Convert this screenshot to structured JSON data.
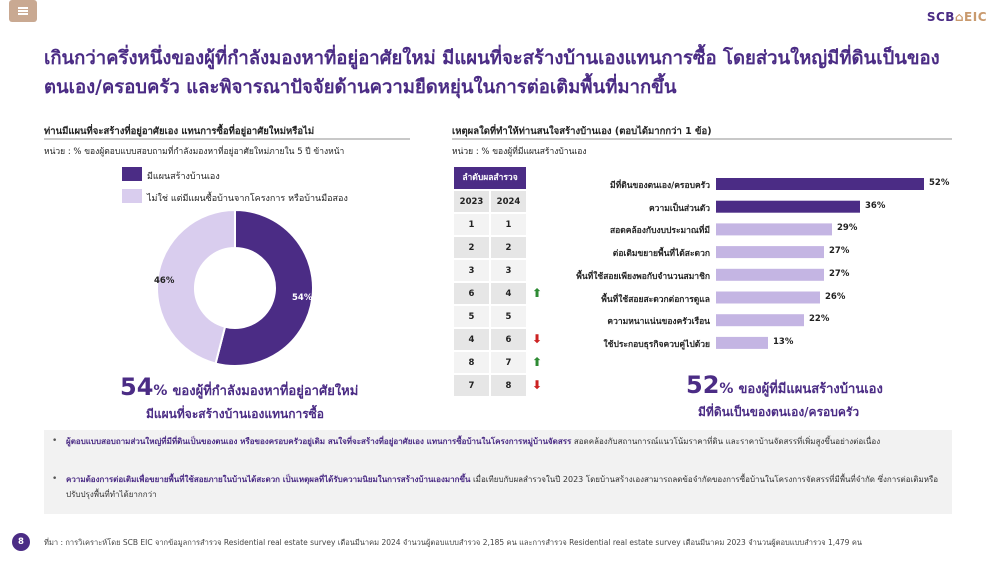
{
  "header": {
    "logo_scb": "SCB",
    "logo_eic": "EIC",
    "title": "เกินกว่าครึ่งหนึ่งของผู้ที่กำลังมองหาที่อยู่อาศัยใหม่ มีแผนที่จะสร้างบ้านเองแทนการซื้อ โดยส่วนใหญ่มีที่ดินเป็นของตนเอง/ครอบครัว และพิจารณาปัจจัยด้านความยืดหยุ่นในการต่อเติมพื้นที่มากขึ้น"
  },
  "left_panel": {
    "heading": "ท่านมีแผนที่จะสร้างที่อยู่อาศัยเอง แทนการซื้อที่อยู่อาศัยใหม่หรือไม่",
    "unit": "หน่วย : % ของผู้ตอบแบบสอบถามที่กำลังมองหาที่อยู่อาศัยใหม่ภายใน 5 ปี ข้างหน้า",
    "legend": [
      {
        "label": "มีแผนสร้างบ้านเอง",
        "color": "#4b2c85"
      },
      {
        "label": "ไม่ใช่ แต่มีแผนซื้อบ้านจากโครงการ หรือบ้านมือสอง",
        "color": "#d9cdee"
      }
    ],
    "big_pct": "54",
    "big_pct_sign": "%",
    "big_text": "ของผู้ที่กำลังมองหาที่อยู่อาศัยใหม่",
    "big_line2": "มีแผนที่จะสร้างบ้านเองแทนการซื้อ"
  },
  "donut": {
    "segments": [
      {
        "name": "มีแผนสร้างบ้านเอง",
        "value": 54,
        "label": "54%",
        "color": "#4b2c85"
      },
      {
        "name": "ไม่ใช่ แต่มีแผนซื้อบ้านจากโครงการ หรือบ้านมือสอง",
        "value": 46,
        "label": "46%",
        "color": "#d9cdee"
      }
    ]
  },
  "right_panel": {
    "heading": "เหตุผลใดที่ทำให้ท่านสนใจสร้างบ้านเอง (ตอบได้มากกว่า 1 ข้อ)",
    "unit": "หน่วย : % ของผู้ที่มีแผนสร้างบ้านเอง",
    "rank_title": "ลำดับผลสำรวจ",
    "rank_years": [
      "2023",
      "2024"
    ],
    "ranks": [
      {
        "y2023": "1",
        "y2024": "1",
        "trend": ""
      },
      {
        "y2023": "2",
        "y2024": "2",
        "trend": ""
      },
      {
        "y2023": "3",
        "y2024": "3",
        "trend": ""
      },
      {
        "y2023": "6",
        "y2024": "4",
        "trend": "up"
      },
      {
        "y2023": "5",
        "y2024": "5",
        "trend": ""
      },
      {
        "y2023": "4",
        "y2024": "6",
        "trend": "down"
      },
      {
        "y2023": "8",
        "y2024": "7",
        "trend": "up"
      },
      {
        "y2023": "7",
        "y2024": "8",
        "trend": "down"
      }
    ],
    "big_pct": "52",
    "big_pct_sign": "%",
    "big_text": "ของผู้ที่มีแผนสร้างบ้านเอง",
    "big_line2": "มีที่ดินเป็นของตนเอง/ครอบครัว"
  },
  "chart_data": {
    "type": "bar",
    "orientation": "horizontal",
    "categories": [
      "มีที่ดินของตนเอง/ครอบครัว",
      "ความเป็นส่วนตัว",
      "สอดคล้องกับงบประมาณที่มี",
      "ต่อเติมขยายพื้นที่ได้สะดวก",
      "พื้นที่ใช้สอยเพียงพอกับจำนวนสมาชิก",
      "พื้นที่ใช้สอยสะดวกต่อการดูแล",
      "ความหนาแน่นของครัวเรือน",
      "ใช้ประกอบธุรกิจควบคู่ไปด้วย"
    ],
    "values": [
      52,
      36,
      29,
      27,
      27,
      26,
      22,
      13
    ],
    "value_labels": [
      "52%",
      "36%",
      "29%",
      "27%",
      "27%",
      "26%",
      "22%",
      "13%"
    ],
    "colors": [
      "#4b2c85",
      "#4b2c85",
      "#c4b5e3",
      "#c4b5e3",
      "#c4b5e3",
      "#c4b5e3",
      "#c4b5e3",
      "#c4b5e3"
    ],
    "xlim": [
      0,
      60
    ],
    "grid": false
  },
  "notes": [
    {
      "bold": "ผู้ตอบแบบสอบถามส่วนใหญ่ที่มีที่ดินเป็นของตนเอง หรือของครอบครัวอยู่เดิม สนใจที่จะสร้างที่อยู่อาศัยเอง แทนการซื้อบ้านในโครงการหมู่บ้านจัดสรร",
      "text": " สอดคล้องกับสถานการณ์แนวโน้มราคาที่ดิน และราคาบ้านจัดสรรที่เพิ่มสูงขึ้นอย่างต่อเนื่อง"
    },
    {
      "bold": "ความต้องการต่อเติมเพื่อขยายพื้นที่ใช้สอยภายในบ้านได้สะดวก เป็นเหตุผลที่ได้รับความนิยมในการสร้างบ้านเองมากขึ้น",
      "text": " เมื่อเทียบกับผลสำรวจในปี 2023 โดยบ้านสร้างเองสามารถลดข้อจำกัดของการซื้อบ้านในโครงการจัดสรรที่มีพื้นที่จำกัด ซึ่งการต่อเติมหรือปรับปรุงพื้นที่ทำได้ยากกว่า"
    }
  ],
  "footer": {
    "page_number": "8",
    "source": "ที่มา : การวิเคราะห์โดย SCB EIC จากข้อมูลการสำรวจ Residential real estate survey เดือนมีนาคม 2024 จำนวนผู้ตอบแบบสำรวจ 2,185 คน และการสำรวจ Residential real estate survey เดือนมีนาคม 2023 จำนวนผู้ตอบแบบสำรวจ 1,479 คน"
  }
}
